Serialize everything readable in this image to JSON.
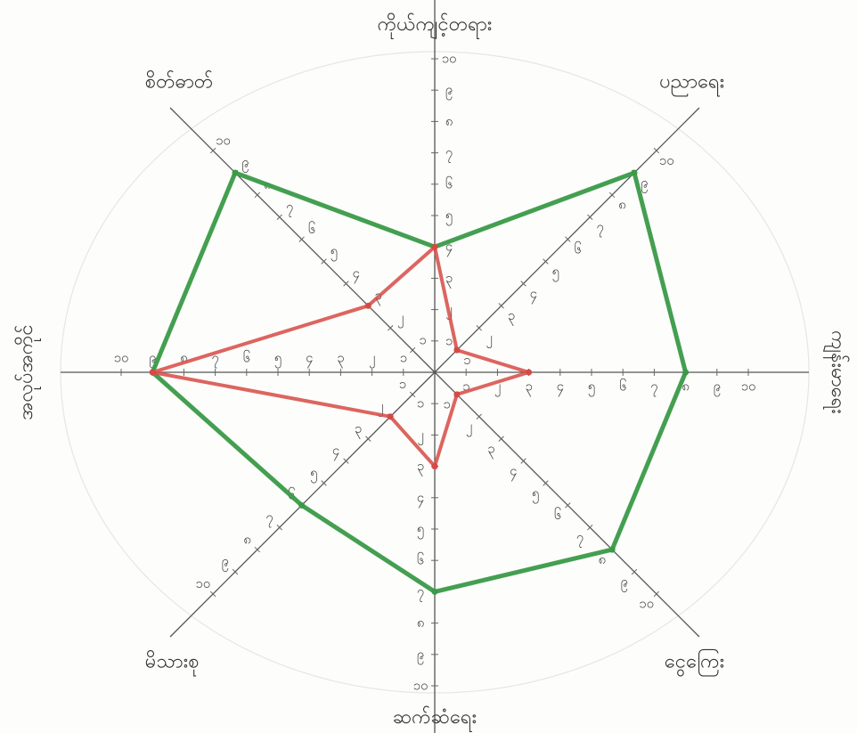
{
  "chart_data": {
    "type": "radar",
    "title": "",
    "max": 10,
    "axes": [
      {
        "label": "ကိုယ်ကျင့်တရား"
      },
      {
        "label": "ပညာရေး"
      },
      {
        "label": "ကျန်းမာရေး"
      },
      {
        "label": "ငွေကြေး"
      },
      {
        "label": "ဆက်ဆံရေး"
      },
      {
        "label": "မိသားစု"
      },
      {
        "label": "အလုပ်အကိုင်"
      },
      {
        "label": "စိတ်ဓာတ်"
      }
    ],
    "tick_labels": [
      "၁",
      "၂",
      "၃",
      "၄",
      "၅",
      "၆",
      "၇",
      "၈",
      "၉",
      "၁၀"
    ],
    "series": [
      {
        "values": [
          4,
          9,
          8,
          8,
          7,
          6,
          9,
          9
        ],
        "color": "#3a9a48"
      },
      {
        "values": [
          4,
          1,
          3,
          1,
          3,
          2,
          9,
          3
        ],
        "color": "#d64a44"
      }
    ],
    "grid": false
  }
}
